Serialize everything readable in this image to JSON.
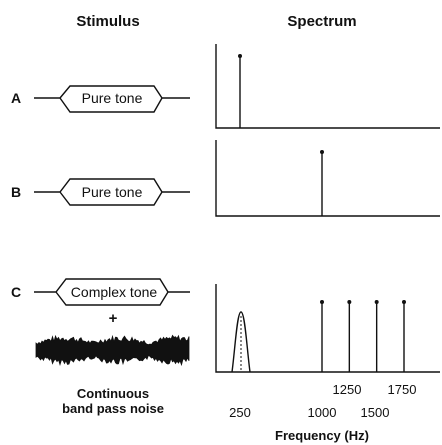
{
  "headers": {
    "stimulus": "Stimulus",
    "spectrum": "Spectrum"
  },
  "rows": [
    {
      "label": "A",
      "box": "Pure tone"
    },
    {
      "label": "B",
      "box": "Pure tone"
    },
    {
      "label": "C",
      "box": "Complex tone"
    }
  ],
  "plus": "+",
  "noise_label": {
    "line1": "Continuous",
    "line2": "band pass noise"
  },
  "x_ticks_upper": [
    "1250",
    "1750"
  ],
  "x_ticks_lower": [
    "250",
    "1000",
    "1500"
  ],
  "x_axis_label": "Frequency (Hz)",
  "chart_data": [
    {
      "type": "spectrum",
      "panel": "A",
      "lines_hz": [
        250
      ]
    },
    {
      "type": "spectrum",
      "panel": "B",
      "lines_hz": [
        1000
      ]
    },
    {
      "type": "spectrum",
      "panel": "C",
      "lines_hz": [
        1000,
        1250,
        1500,
        1750
      ],
      "noise_band_center_hz": 250
    }
  ]
}
